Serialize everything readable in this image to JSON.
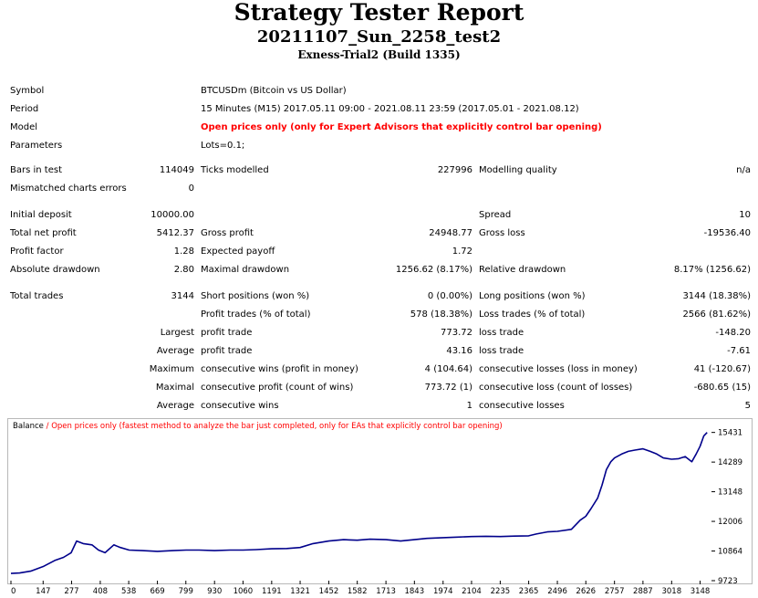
{
  "header": {
    "title": "Strategy Tester Report",
    "subtitle": "20211107_Sun_2258_test2",
    "server": "Exness-Trial2 (Build 1335)"
  },
  "info": {
    "symbol_label": "Symbol",
    "symbol_value": "BTCUSDm (Bitcoin vs US Dollar)",
    "period_label": "Period",
    "period_value": "15 Minutes (M15) 2017.05.11 09:00 - 2021.08.11 23:59 (2017.05.01 - 2021.08.12)",
    "model_label": "Model",
    "model_value": "Open prices only (only for Expert Advisors that explicitly control bar opening)",
    "parameters_label": "Parameters",
    "parameters_value": "Lots=0.1;"
  },
  "stats": {
    "bars_label": "Bars in test",
    "bars_value": "114049",
    "ticks_label": "Ticks modelled",
    "ticks_value": "227996",
    "quality_label": "Modelling quality",
    "quality_value": "n/a",
    "mismatch_label": "Mismatched charts errors",
    "mismatch_value": "0",
    "deposit_label": "Initial deposit",
    "deposit_value": "10000.00",
    "spread_label": "Spread",
    "spread_value": "10",
    "net_label": "Total net profit",
    "net_value": "5412.37",
    "gross_profit_label": "Gross profit",
    "gross_profit_value": "24948.77",
    "gross_loss_label": "Gross loss",
    "gross_loss_value": "-19536.40",
    "pf_label": "Profit factor",
    "pf_value": "1.28",
    "payoff_label": "Expected payoff",
    "payoff_value": "1.72",
    "abs_dd_label": "Absolute drawdown",
    "abs_dd_value": "2.80",
    "max_dd_label": "Maximal drawdown",
    "max_dd_value": "1256.62 (8.17%)",
    "rel_dd_label": "Relative drawdown",
    "rel_dd_value": "8.17% (1256.62)",
    "trades_label": "Total trades",
    "trades_value": "3144",
    "short_label": "Short positions (won %)",
    "short_value": "0 (0.00%)",
    "long_label": "Long positions (won %)",
    "long_value": "3144 (18.38%)",
    "profit_trades_label": "Profit trades (% of total)",
    "profit_trades_value": "578 (18.38%)",
    "loss_trades_label": "Loss trades (% of total)",
    "loss_trades_value": "2566 (81.62%)",
    "largest_label": "Largest",
    "largest_profit_label": "profit trade",
    "largest_profit_value": "773.72",
    "largest_loss_label": "loss trade",
    "largest_loss_value": "-148.20",
    "average_label": "Average",
    "average_profit_label": "profit trade",
    "average_profit_value": "43.16",
    "average_loss_label": "loss trade",
    "average_loss_value": "-7.61",
    "maximum_label": "Maximum",
    "max_cons_wins_label": "consecutive wins (profit in money)",
    "max_cons_wins_value": "4 (104.64)",
    "max_cons_losses_label": "consecutive losses (loss in money)",
    "max_cons_losses_value": "41 (-120.67)",
    "maximal_label": "Maximal",
    "maximal_profit_label": "consecutive profit (count of wins)",
    "maximal_profit_value": "773.72 (1)",
    "maximal_loss_label": "consecutive loss (count of losses)",
    "maximal_loss_value": "-680.65 (15)",
    "average2_label": "Average",
    "avg_cons_wins_label": "consecutive wins",
    "avg_cons_wins_value": "1",
    "avg_cons_losses_label": "consecutive losses",
    "avg_cons_losses_value": "5"
  },
  "chart_legend": {
    "series": "Balance",
    "separator": " / ",
    "description": "Open prices only (fastest method to analyze the bar just completed, only for EAs that explicitly control bar opening)"
  },
  "chart_data": {
    "type": "line",
    "title": "Balance",
    "xlabel": "",
    "ylabel": "",
    "x_ticks": [
      0,
      147,
      277,
      408,
      538,
      669,
      799,
      930,
      1060,
      1191,
      1321,
      1452,
      1582,
      1713,
      1843,
      1974,
      2104,
      2235,
      2365,
      2496,
      2626,
      2757,
      2887,
      3018,
      3148
    ],
    "y_ticks": [
      9723,
      10864,
      12006,
      13148,
      14289,
      15431
    ],
    "xlim": [
      0,
      3200
    ],
    "ylim": [
      9723,
      15700
    ],
    "series": [
      {
        "name": "Balance",
        "color": "#00008b",
        "points": [
          [
            0,
            10000
          ],
          [
            40,
            10020
          ],
          [
            90,
            10090
          ],
          [
            150,
            10280
          ],
          [
            200,
            10500
          ],
          [
            240,
            10620
          ],
          [
            275,
            10800
          ],
          [
            300,
            11250
          ],
          [
            330,
            11150
          ],
          [
            370,
            11100
          ],
          [
            400,
            10900
          ],
          [
            430,
            10800
          ],
          [
            470,
            11100
          ],
          [
            500,
            11000
          ],
          [
            540,
            10900
          ],
          [
            600,
            10880
          ],
          [
            669,
            10850
          ],
          [
            740,
            10880
          ],
          [
            800,
            10900
          ],
          [
            860,
            10900
          ],
          [
            930,
            10880
          ],
          [
            1000,
            10900
          ],
          [
            1060,
            10900
          ],
          [
            1120,
            10920
          ],
          [
            1191,
            10950
          ],
          [
            1260,
            10960
          ],
          [
            1321,
            11000
          ],
          [
            1380,
            11150
          ],
          [
            1452,
            11250
          ],
          [
            1520,
            11300
          ],
          [
            1582,
            11280
          ],
          [
            1640,
            11320
          ],
          [
            1713,
            11300
          ],
          [
            1780,
            11250
          ],
          [
            1843,
            11300
          ],
          [
            1900,
            11350
          ],
          [
            1974,
            11380
          ],
          [
            2040,
            11400
          ],
          [
            2104,
            11420
          ],
          [
            2170,
            11430
          ],
          [
            2235,
            11420
          ],
          [
            2300,
            11440
          ],
          [
            2365,
            11450
          ],
          [
            2400,
            11520
          ],
          [
            2450,
            11600
          ],
          [
            2496,
            11620
          ],
          [
            2560,
            11700
          ],
          [
            2600,
            12050
          ],
          [
            2626,
            12200
          ],
          [
            2650,
            12500
          ],
          [
            2680,
            12900
          ],
          [
            2700,
            13400
          ],
          [
            2720,
            14000
          ],
          [
            2740,
            14300
          ],
          [
            2757,
            14450
          ],
          [
            2790,
            14600
          ],
          [
            2820,
            14700
          ],
          [
            2850,
            14750
          ],
          [
            2887,
            14800
          ],
          [
            2920,
            14700
          ],
          [
            2950,
            14600
          ],
          [
            2980,
            14450
          ],
          [
            3018,
            14400
          ],
          [
            3050,
            14420
          ],
          [
            3080,
            14500
          ],
          [
            3110,
            14300
          ],
          [
            3130,
            14600
          ],
          [
            3148,
            14900
          ],
          [
            3165,
            15300
          ],
          [
            3180,
            15431
          ]
        ]
      }
    ]
  }
}
